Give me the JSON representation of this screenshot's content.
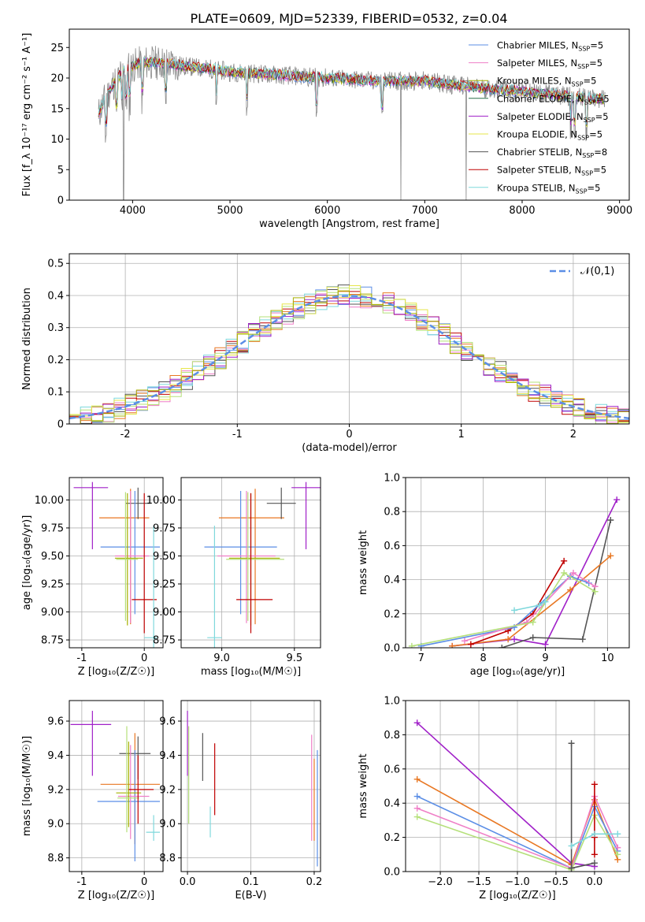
{
  "figure": {
    "title": "PLATE=0609, MJD=52339, FIBERID=0532, z=0.04"
  },
  "colors": {
    "Chabrier MILES": "#5b8ee6",
    "Salpeter MILES": "#ef7fc7",
    "Kroupa MILES": "#a6b000",
    "Chabrier ELODIE": "#2a6e4a",
    "Salpeter ELODIE": "#a020c8",
    "Kroupa ELODIE": "#e6e64a",
    "Chabrier STELIB": "#555555",
    "Salpeter STELIB": "#c00000",
    "Kroupa STELIB": "#7fd8dc",
    "orange": "#e87722",
    "green": "#b5e07a",
    "gauss": "#5b8ee6"
  },
  "chart_data": [
    {
      "id": "spectrum",
      "type": "line",
      "title": "PLATE=0609, MJD=52339, FIBERID=0532, z=0.04",
      "xlabel": "wavelength [Angstrom, rest frame]",
      "ylabel": "Flux [f_λ 10⁻¹⁷ erg cm⁻² s⁻¹ A⁻¹]",
      "xlim": [
        3350,
        9100
      ],
      "ylim": [
        0,
        28
      ],
      "xticks": [
        "4000",
        "5000",
        "6000",
        "7000",
        "8000",
        "9000"
      ],
      "yticks": [
        "0",
        "5",
        "10",
        "15",
        "20",
        "25"
      ],
      "legend_position": "upper right",
      "grid": false,
      "continuum_points": [
        [
          3650,
          14
        ],
        [
          3700,
          16
        ],
        [
          3800,
          19
        ],
        [
          3900,
          21
        ],
        [
          4000,
          22
        ],
        [
          4100,
          22.5
        ],
        [
          4300,
          22.5
        ],
        [
          4500,
          22
        ],
        [
          4800,
          21.5
        ],
        [
          5000,
          21
        ],
        [
          5500,
          20.5
        ],
        [
          6000,
          20
        ],
        [
          6500,
          19.5
        ],
        [
          7000,
          19.5
        ],
        [
          7500,
          18.5
        ],
        [
          8000,
          17.8
        ],
        [
          8500,
          17
        ],
        [
          8850,
          16.5
        ]
      ],
      "legend": [
        "Chabrier MILES, N_SSP=5",
        "Salpeter MILES, N_SSP=5",
        "Kroupa MILES, N_SSP=5",
        "Chabrier ELODIE, N_SSP=5",
        "Salpeter ELODIE, N_SSP=5",
        "Kroupa ELODIE, N_SSP=5",
        "Chabrier STELIB, N_SSP=8",
        "Salpeter STELIB, N_SSP=5",
        "Kroupa STELIB, N_SSP=5"
      ]
    },
    {
      "id": "residuals",
      "type": "line",
      "xlabel": "(data-model)/error",
      "ylabel": "Normed distribution",
      "xlim": [
        -2.5,
        2.5
      ],
      "ylim": [
        0,
        0.53
      ],
      "xticks": [
        -2,
        -1,
        0,
        1,
        2
      ],
      "yticks": [
        0.0,
        0.1,
        0.2,
        0.3,
        0.4,
        0.5
      ],
      "grid": true,
      "legend": [
        "𝒩(0,1)"
      ],
      "legend_position": "upper right",
      "series_count": 10
    },
    {
      "id": "age_vs_Z",
      "type": "scatter",
      "xlabel": "Z [log₁₀(Z/Z☉)]",
      "ylabel": "age  [log₁₀(age/yr)]",
      "xlim": [
        -1.2,
        0.3
      ],
      "ylim": [
        8.68,
        10.2
      ],
      "xticks": [
        -1,
        0
      ],
      "yticks": [
        "8.75",
        "9.00",
        "9.25",
        "9.50",
        "9.75",
        "10.00"
      ],
      "grid": true,
      "points": [
        {
          "c": "Salpeter ELODIE",
          "x": -0.83,
          "y": 10.11,
          "xerr": [
            0.3,
            0.25
          ],
          "yerr": [
            0.55,
            0.05
          ]
        },
        {
          "c": "orange",
          "x": -0.22,
          "y": 9.84,
          "xerr": [
            0.5,
            0.3
          ],
          "yerr": [
            0.95,
            0.26
          ]
        },
        {
          "c": "Chabrier STELIB",
          "x": -0.1,
          "y": 9.97,
          "xerr": [
            0.2,
            0.2
          ],
          "yerr": [
            0.14,
            0.14
          ]
        },
        {
          "c": "Chabrier MILES",
          "x": -0.15,
          "y": 9.58,
          "xerr": [
            0.55,
            0.4
          ],
          "yerr": [
            0.6,
            0.5
          ]
        },
        {
          "c": "Salpeter MILES",
          "x": -0.22,
          "y": 9.5,
          "xerr": [
            0.25,
            0.3
          ],
          "yerr": [
            0.6,
            0.58
          ]
        },
        {
          "c": "Kroupa MILES",
          "x": -0.27,
          "y": 9.48,
          "xerr": [
            0.2,
            0.25
          ],
          "yerr": [
            0.6,
            0.58
          ]
        },
        {
          "c": "green",
          "x": -0.3,
          "y": 9.47,
          "xerr": [
            0.15,
            0.2
          ],
          "yerr": [
            0.55,
            0.6
          ]
        },
        {
          "c": "Salpeter STELIB",
          "x": 0.0,
          "y": 9.11,
          "xerr": [
            0.2,
            0.2
          ],
          "yerr": [
            0.3,
            0.95
          ]
        },
        {
          "c": "Kroupa STELIB",
          "x": 0.15,
          "y": 8.77,
          "xerr": [
            0.15,
            0.05
          ],
          "yerr": [
            0.1,
            1.0
          ]
        }
      ]
    },
    {
      "id": "age_vs_mass",
      "type": "scatter",
      "xlabel": "mass [log₁₀(M/M☉)]",
      "ylabel": "",
      "xlim": [
        8.72,
        9.68
      ],
      "ylim": [
        8.68,
        10.2
      ],
      "xticks": [
        "9.0",
        "9.5"
      ],
      "yticks": [
        "8.75",
        "9.00",
        "9.25",
        "9.50",
        "9.75",
        "10.00"
      ],
      "grid": true,
      "points": [
        {
          "c": "Salpeter ELODIE",
          "x": 9.58,
          "y": 10.11,
          "xerr": [
            0.1,
            0.1
          ],
          "yerr": [
            0.55,
            0.05
          ]
        },
        {
          "c": "orange",
          "x": 9.23,
          "y": 9.84,
          "xerr": [
            0.25,
            0.2
          ],
          "yerr": [
            0.95,
            0.26
          ]
        },
        {
          "c": "Chabrier STELIB",
          "x": 9.41,
          "y": 9.97,
          "xerr": [
            0.1,
            0.1
          ],
          "yerr": [
            0.14,
            0.14
          ]
        },
        {
          "c": "Chabrier MILES",
          "x": 9.13,
          "y": 9.58,
          "xerr": [
            0.25,
            0.25
          ],
          "yerr": [
            0.6,
            0.5
          ]
        },
        {
          "c": "Salpeter MILES",
          "x": 9.17,
          "y": 9.5,
          "xerr": [
            0.2,
            0.2
          ],
          "yerr": [
            0.6,
            0.58
          ]
        },
        {
          "c": "Kroupa MILES",
          "x": 9.2,
          "y": 9.48,
          "xerr": [
            0.15,
            0.2
          ],
          "yerr": [
            0.6,
            0.58
          ]
        },
        {
          "c": "green",
          "x": 9.18,
          "y": 9.47,
          "xerr": [
            0.15,
            0.25
          ],
          "yerr": [
            0.55,
            0.6
          ]
        },
        {
          "c": "Salpeter STELIB",
          "x": 9.2,
          "y": 9.11,
          "xerr": [
            0.1,
            0.15
          ],
          "yerr": [
            0.3,
            0.95
          ]
        },
        {
          "c": "Kroupa STELIB",
          "x": 8.95,
          "y": 8.77,
          "xerr": [
            0.05,
            0.05
          ],
          "yerr": [
            0.1,
            1.0
          ]
        }
      ]
    },
    {
      "id": "mass_weight_vs_age",
      "type": "line",
      "xlabel": "age  [log₁₀(age/yr)]",
      "ylabel": "mass weight",
      "xlim": [
        6.75,
        10.35
      ],
      "ylim": [
        0,
        1.0
      ],
      "xticks": [
        7,
        8,
        9,
        10
      ],
      "yticks": [
        "0.0",
        "0.2",
        "0.4",
        "0.6",
        "0.8",
        "1.0"
      ],
      "grid": true,
      "series": [
        {
          "c": "Salpeter ELODIE",
          "x": [
            7.5,
            8.5,
            9.0,
            10.15
          ],
          "y": [
            0.01,
            0.05,
            0.02,
            0.87
          ]
        },
        {
          "c": "Chabrier STELIB",
          "x": [
            8.3,
            8.8,
            9.6,
            10.05
          ],
          "y": [
            0.0,
            0.06,
            0.05,
            0.75
          ]
        },
        {
          "c": "orange",
          "x": [
            7.5,
            8.4,
            9.4,
            10.05
          ],
          "y": [
            0.01,
            0.05,
            0.34,
            0.54
          ]
        },
        {
          "c": "Salpeter STELIB",
          "x": [
            7.8,
            8.4,
            8.8,
            9.3
          ],
          "y": [
            0.02,
            0.1,
            0.2,
            0.51
          ]
        },
        {
          "c": "Chabrier MILES",
          "x": [
            7.0,
            8.5,
            9.4,
            9.7
          ],
          "y": [
            0.01,
            0.12,
            0.42,
            0.38
          ]
        },
        {
          "c": "Salpeter MILES",
          "x": [
            7.7,
            8.7,
            9.45,
            9.8
          ],
          "y": [
            0.04,
            0.15,
            0.44,
            0.36
          ]
        },
        {
          "c": "green",
          "x": [
            6.85,
            8.8,
            9.3,
            9.8
          ],
          "y": [
            0.01,
            0.15,
            0.44,
            0.33
          ]
        },
        {
          "c": "Kroupa STELIB",
          "x": [
            8.5,
            8.9,
            9.0
          ],
          "y": [
            0.22,
            0.25,
            0.27
          ]
        }
      ]
    },
    {
      "id": "mass_vs_Z",
      "type": "scatter",
      "xlabel": "Z [log₁₀(Z/Z☉)]",
      "ylabel": "mass [log₁₀(M/M☉)]",
      "xlim": [
        -1.2,
        0.3
      ],
      "ylim": [
        8.72,
        9.72
      ],
      "xticks": [
        -1,
        0
      ],
      "yticks": [
        "8.8",
        "9.0",
        "9.2",
        "9.4",
        "9.6"
      ],
      "grid": true,
      "points": [
        {
          "c": "Salpeter ELODIE",
          "x": -0.83,
          "y": 9.58,
          "xerr": [
            0.35,
            0.3
          ],
          "yerr": [
            0.3,
            0.08
          ]
        },
        {
          "c": "orange",
          "x": -0.15,
          "y": 9.23,
          "xerr": [
            0.55,
            0.4
          ],
          "yerr": [
            0.35,
            0.3
          ]
        },
        {
          "c": "Chabrier STELIB",
          "x": -0.1,
          "y": 9.41,
          "xerr": [
            0.3,
            0.2
          ],
          "yerr": [
            0.15,
            0.1
          ]
        },
        {
          "c": "Chabrier MILES",
          "x": -0.15,
          "y": 9.13,
          "xerr": [
            0.6,
            0.4
          ],
          "yerr": [
            0.35,
            0.3
          ]
        },
        {
          "c": "Salpeter MILES",
          "x": -0.22,
          "y": 9.16,
          "xerr": [
            0.2,
            0.3
          ],
          "yerr": [
            0.25,
            0.3
          ]
        },
        {
          "c": "Kroupa MILES",
          "x": -0.25,
          "y": 9.18,
          "xerr": [
            0.2,
            0.2
          ],
          "yerr": [
            0.2,
            0.3
          ]
        },
        {
          "c": "green",
          "x": -0.28,
          "y": 9.15,
          "xerr": [
            0.15,
            0.2
          ],
          "yerr": [
            0.2,
            0.42
          ]
        },
        {
          "c": "Salpeter STELIB",
          "x": -0.1,
          "y": 9.2,
          "xerr": [
            0.15,
            0.25
          ],
          "yerr": [
            0.2,
            0.2
          ]
        },
        {
          "c": "Kroupa STELIB",
          "x": 0.15,
          "y": 8.95,
          "xerr": [
            0.12,
            0.1
          ],
          "yerr": [
            0.05,
            0.1
          ]
        }
      ]
    },
    {
      "id": "mass_vs_ebv",
      "type": "scatter",
      "xlabel": "E(B-V)",
      "ylabel": "",
      "xlim": [
        -0.01,
        0.21
      ],
      "ylim": [
        8.72,
        9.72
      ],
      "xticks": [
        "0.0",
        "0.1",
        "0.2"
      ],
      "yticks": [
        "8.8",
        "9.0",
        "9.2",
        "9.4",
        "9.6"
      ],
      "grid": true,
      "points": [
        {
          "c": "Salpeter ELODIE",
          "x": 0.0,
          "y": 9.58,
          "yerr": [
            0.3,
            0.08
          ]
        },
        {
          "c": "green",
          "x": 0.002,
          "y": 9.1,
          "yerr": [
            0.1,
            0.47
          ]
        },
        {
          "c": "Chabrier STELIB",
          "x": 0.024,
          "y": 9.41,
          "yerr": [
            0.16,
            0.12
          ]
        },
        {
          "c": "Kroupa STELIB",
          "x": 0.036,
          "y": 9.0,
          "yerr": [
            0.08,
            0.1
          ]
        },
        {
          "c": "Salpeter STELIB",
          "x": 0.043,
          "y": 9.25,
          "yerr": [
            0.2,
            0.22
          ]
        },
        {
          "c": "Salpeter MILES",
          "x": 0.196,
          "y": 9.2,
          "yerr": [
            0.3,
            0.32
          ]
        },
        {
          "c": "orange",
          "x": 0.2,
          "y": 9.18,
          "yerr": [
            0.28,
            0.2
          ]
        },
        {
          "c": "Chabrier MILES",
          "x": 0.205,
          "y": 9.1,
          "yerr": [
            0.35,
            0.33
          ]
        }
      ]
    },
    {
      "id": "mass_weight_vs_Z",
      "type": "line",
      "xlabel": "Z [log₁₀(Z/Z☉)]",
      "ylabel": "mass weight",
      "xlim": [
        -2.45,
        0.45
      ],
      "ylim": [
        0,
        1.0
      ],
      "xticks": [
        "−2.0",
        "−1.5",
        "−1.0",
        "−0.5",
        "0.0"
      ],
      "yticks": [
        "0.0",
        "0.2",
        "0.4",
        "0.6",
        "0.8",
        "1.0"
      ],
      "grid": true,
      "series": [
        {
          "c": "Salpeter ELODIE",
          "x": [
            -2.3,
            -0.3,
            0.0
          ],
          "y": [
            0.87,
            0.05,
            0.03
          ]
        },
        {
          "c": "orange",
          "x": [
            -2.3,
            -0.3,
            0.0,
            0.3
          ],
          "y": [
            0.54,
            0.04,
            0.42,
            0.07
          ]
        },
        {
          "c": "Chabrier MILES",
          "x": [
            -2.3,
            -0.3,
            0.0,
            0.3
          ],
          "y": [
            0.44,
            0.02,
            0.38,
            0.12
          ]
        },
        {
          "c": "Salpeter MILES",
          "x": [
            -2.3,
            -0.3,
            0.0,
            0.3
          ],
          "y": [
            0.37,
            0.02,
            0.44,
            0.14
          ]
        },
        {
          "c": "green",
          "x": [
            -2.3,
            -0.3,
            0.0,
            0.3
          ],
          "y": [
            0.32,
            0.01,
            0.33,
            0.1
          ]
        },
        {
          "c": "Chabrier STELIB",
          "x": [
            -0.3,
            -0.3,
            0.0
          ],
          "y": [
            0.75,
            0.02,
            0.05
          ]
        },
        {
          "c": "Salpeter STELIB",
          "x": [
            0.0,
            0.0,
            0.0
          ],
          "y": [
            0.51,
            0.2,
            0.1
          ]
        },
        {
          "c": "Kroupa STELIB",
          "x": [
            -0.3,
            0.0,
            0.3
          ],
          "y": [
            0.15,
            0.22,
            0.22
          ]
        }
      ]
    }
  ]
}
